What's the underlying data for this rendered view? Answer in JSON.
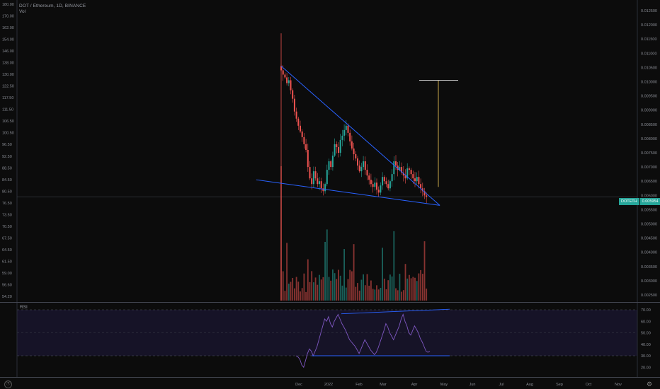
{
  "header": {
    "symbol_line": "DOT / Ethereum, 1D, BINANCE",
    "volume_label": "Vol",
    "rsi_label": "RSI"
  },
  "price_tag": {
    "symbol": "DOTETH",
    "value": "0.005954"
  },
  "colors": {
    "background": "#0c0c0c",
    "up": "#26a69a",
    "down": "#ef5350",
    "trendline": "#2962ff",
    "target": "#c9a94a",
    "rsi_line": "#7e57c2",
    "rsi_band": "#1a1630"
  },
  "icons": {
    "logo": "tradingview-logo-icon",
    "settings": "gear-icon"
  },
  "chart_data": [
    {
      "type": "line",
      "title": "DOT / Ethereum, 1D, BINANCE",
      "note": "candlestick price chart (values approximate, read from left axis)",
      "left_axis_ticks": [
        "180.00",
        "170.00",
        "162.00",
        "154.00",
        "146.00",
        "138.00",
        "130.00",
        "122.50",
        "117.50",
        "111.50",
        "106.50",
        "100.50",
        "96.50",
        "92.50",
        "88.50",
        "84.50",
        "80.50",
        "76.50",
        "73.50",
        "70.50",
        "67.50",
        "64.50",
        "61.50",
        "59.00",
        "56.60",
        "54.20"
      ],
      "right_axis_ticks": [
        "0.012500",
        "0.012000",
        "0.011500",
        "0.011000",
        "0.010500",
        "0.010000",
        "0.009500",
        "0.009000",
        "0.008500",
        "0.008000",
        "0.007500",
        "0.007000",
        "0.006500",
        "0.006000",
        "0.005500",
        "0.005000",
        "0.004500",
        "0.004000",
        "0.003500",
        "0.003000",
        "0.002500"
      ],
      "time_labels": [
        "Dec",
        "2022",
        "Feb",
        "Mar",
        "Apr",
        "May",
        "Jun",
        "Jul",
        "Aug",
        "Sep",
        "Oct",
        "Nov"
      ],
      "last_price": 0.005954,
      "close_series": [
        0.0104,
        0.01025,
        0.01015,
        0.00995,
        0.01005,
        0.0097,
        0.0094,
        0.00895,
        0.0087,
        0.00845,
        0.00825,
        0.00805,
        0.0078,
        0.0076,
        0.007,
        0.0066,
        0.0064,
        0.00685,
        0.0066,
        0.0064,
        0.0065,
        0.00625,
        0.00615,
        0.0064,
        0.0069,
        0.0072,
        0.007,
        0.0074,
        0.0078,
        0.0077,
        0.0075,
        0.00795,
        0.0081,
        0.0083,
        0.00845,
        0.0082,
        0.0079,
        0.00765,
        0.00745,
        0.0073,
        0.00705,
        0.00685,
        0.007,
        0.0072,
        0.0069,
        0.0067,
        0.00655,
        0.0064,
        0.0063,
        0.00645,
        0.0062,
        0.0061,
        0.00635,
        0.00665,
        0.0065,
        0.0064,
        0.00625,
        0.0065,
        0.00675,
        0.0072,
        0.00705,
        0.0069,
        0.007,
        0.0068,
        0.0067,
        0.0066,
        0.00695,
        0.0069,
        0.00675,
        0.0066,
        0.0065,
        0.00665,
        0.0064,
        0.00625,
        0.00615,
        0.006,
        0.00595
      ],
      "annotations": {
        "upper_trendline": [
          [
            0,
            0.01055
          ],
          [
            83,
            0.00565
          ]
        ],
        "lower_trendline": [
          [
            -13,
            0.00655
          ],
          [
            83,
            0.00565
          ]
        ],
        "target_top": 0.01005,
        "target_bottom": 0.0063
      }
    },
    {
      "type": "bar",
      "title": "Vol",
      "note": "volume bars, relative heights"
    },
    {
      "type": "line",
      "title": "RSI",
      "y_ticks": [
        "70.00",
        "60.00",
        "50.00",
        "40.00",
        "30.00",
        "20.00"
      ],
      "ylim": [
        20,
        73
      ],
      "levels": [
        70,
        30
      ],
      "values": [
        30,
        29,
        27,
        22,
        20,
        26,
        32,
        36,
        34,
        30,
        34,
        38,
        44,
        50,
        56,
        62,
        60,
        64,
        58,
        55,
        60,
        63,
        66,
        62,
        58,
        55,
        52,
        48,
        44,
        42,
        40,
        38,
        35,
        32,
        36,
        40,
        44,
        41,
        38,
        35,
        33,
        31,
        33,
        37,
        42,
        47,
        52,
        58,
        55,
        50,
        47,
        44,
        48,
        52,
        56,
        62,
        66,
        60,
        56,
        50,
        48,
        52,
        56,
        53,
        50,
        45,
        42,
        38,
        34,
        33,
        34
      ]
    }
  ]
}
